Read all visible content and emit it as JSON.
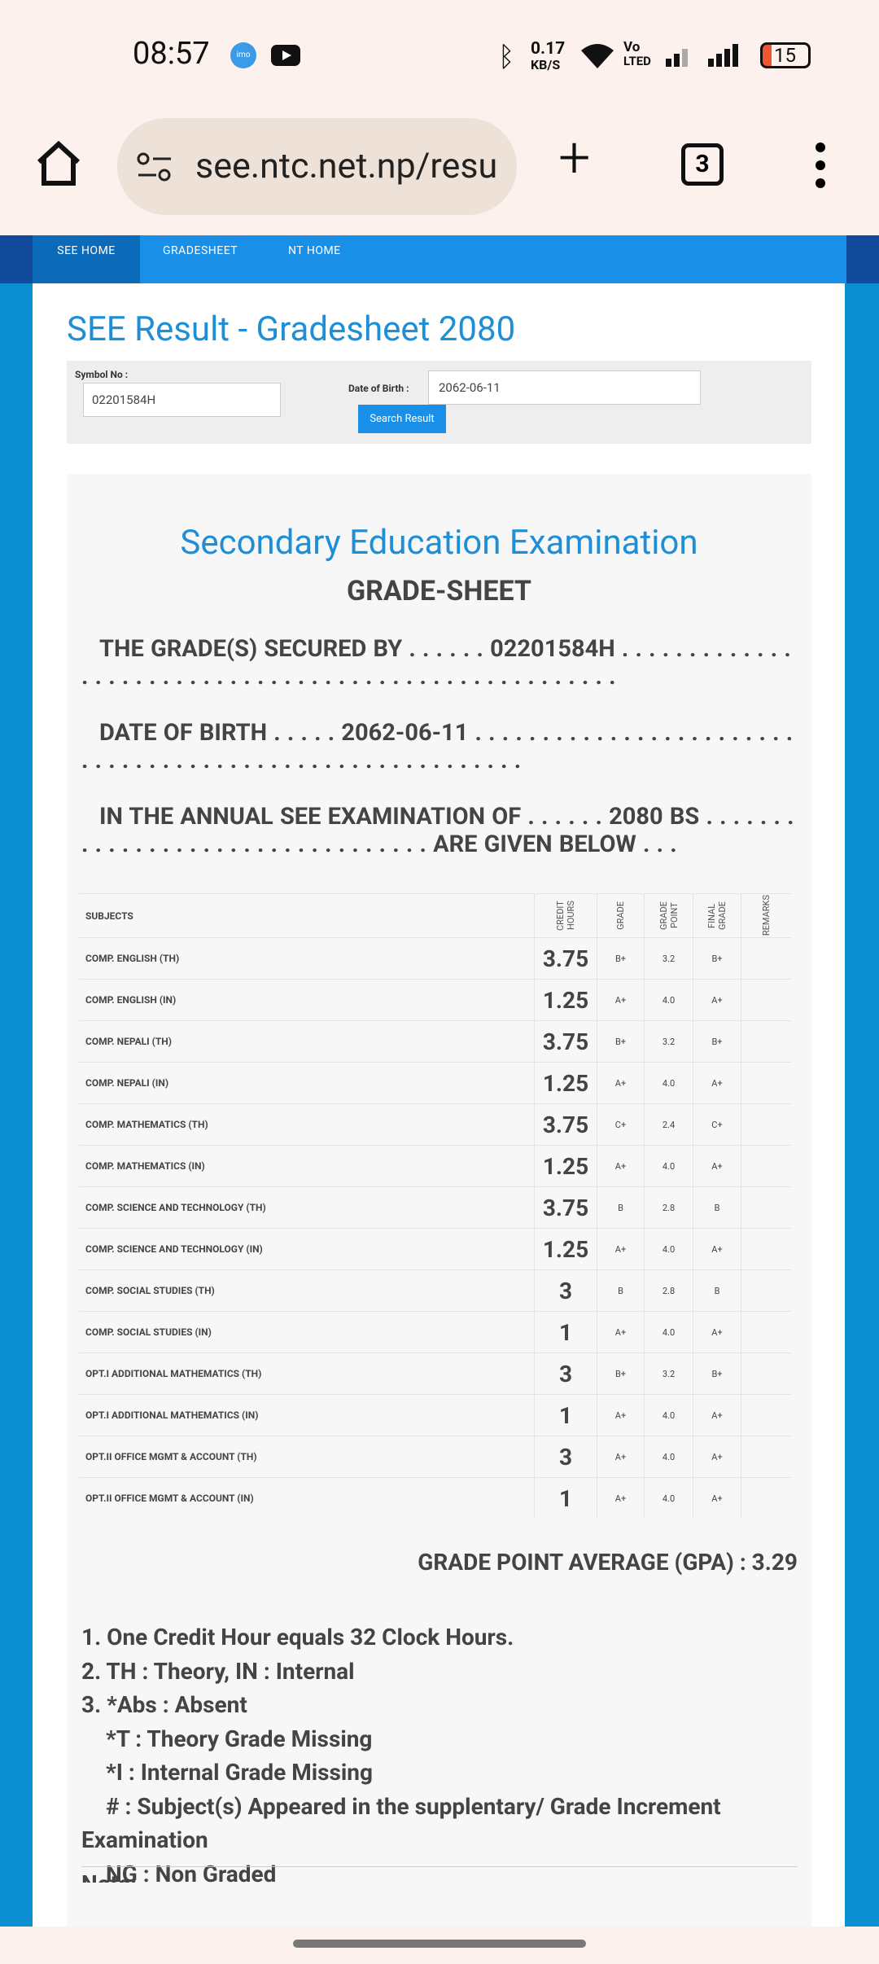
{
  "status_bar": {
    "time": "08:57",
    "icon_label": "imo",
    "net_speed": "0.17",
    "net_unit": "KB/S",
    "volte_top": "Vo",
    "volte_bottom": "LTED",
    "battery": "15"
  },
  "browser": {
    "url": "see.ntc.net.np/resu",
    "tab_count": "3"
  },
  "nav": [
    "SEE HOME",
    "GRADESHEET",
    "NT HOME"
  ],
  "page": {
    "title": "SEE Result - Gradesheet 2080",
    "form": {
      "symbol_label": "Symbol No :",
      "symbol_value": "02201584H",
      "dob_label": "Date of Birth :",
      "dob_value": "2062-06-11",
      "button": "Search Result"
    },
    "sheet": {
      "heading": "Secondary Education Examination",
      "subheading": "GRADE-SHEET",
      "lines": [
        "THE GRADE(S) SECURED BY . . . . . . 02201584H . . . . . . . . . . . . . . . . . . . . . . . . . . . . . . . . . . . . . . . . . . . . . . . . . . . . .",
        "DATE OF BIRTH . . . . . 2062-06-11 . . . . . . . . . . . . . . . . . . . . . . . . . . . . . . . . . . . . . . . . . . . . . . . . . . . . . . . . .",
        "IN THE ANNUAL SEE EXAMINATION OF . . . . . . 2080 BS . . . . . . . . . . . . . . . . . . . . . . . . . . . . . . . . . ARE GIVEN BELOW . . ."
      ],
      "table": {
        "headers": [
          "SUBJECTS",
          "CREDIT HOURS",
          "GRADE",
          "GRADE POINT",
          "FINAL GRADE",
          "REMARKS"
        ],
        "rows": [
          [
            "COMP. ENGLISH (TH)",
            "3.75",
            "B+",
            "3.2",
            "B+"
          ],
          [
            "COMP. ENGLISH (IN)",
            "1.25",
            "A+",
            "4.0",
            "A+"
          ],
          [
            "COMP. NEPALI (TH)",
            "3.75",
            "B+",
            "3.2",
            "B+"
          ],
          [
            "COMP. NEPALI (IN)",
            "1.25",
            "A+",
            "4.0",
            "A+"
          ],
          [
            "COMP. MATHEMATICS (TH)",
            "3.75",
            "C+",
            "2.4",
            "C+"
          ],
          [
            "COMP. MATHEMATICS (IN)",
            "1.25",
            "A+",
            "4.0",
            "A+"
          ],
          [
            "COMP. SCIENCE AND TECHNOLOGY (TH)",
            "3.75",
            "B",
            "2.8",
            "B"
          ],
          [
            "COMP. SCIENCE AND TECHNOLOGY (IN)",
            "1.25",
            "A+",
            "4.0",
            "A+"
          ],
          [
            "COMP. SOCIAL STUDIES (TH)",
            "3",
            "B",
            "2.8",
            "B"
          ],
          [
            "COMP. SOCIAL STUDIES (IN)",
            "1",
            "A+",
            "4.0",
            "A+"
          ],
          [
            "OPT.I ADDITIONAL MATHEMATICS (TH)",
            "3",
            "B+",
            "3.2",
            "B+"
          ],
          [
            "OPT.I ADDITIONAL MATHEMATICS (IN)",
            "1",
            "A+",
            "4.0",
            "A+"
          ],
          [
            "OPT.II OFFICE MGMT & ACCOUNT (TH)",
            "3",
            "A+",
            "4.0",
            "A+"
          ],
          [
            "OPT.II OFFICE MGMT & ACCOUNT (IN)",
            "1",
            "A+",
            "4.0",
            "A+"
          ]
        ]
      },
      "gpa": "GRADE POINT AVERAGE (GPA) : 3.29",
      "notes": [
        "1. One Credit Hour equals 32 Clock Hours.",
        "2. TH : Theory, IN : Internal",
        "3. *Abs : Absent",
        "*T : Theory Grade Missing",
        "*I : Internal Grade Missing",
        "# : Subject(s) Appeared in the supplentary/ Grade Increment Examination",
        "NG : Non Graded"
      ],
      "note_heading": "Note:"
    }
  }
}
